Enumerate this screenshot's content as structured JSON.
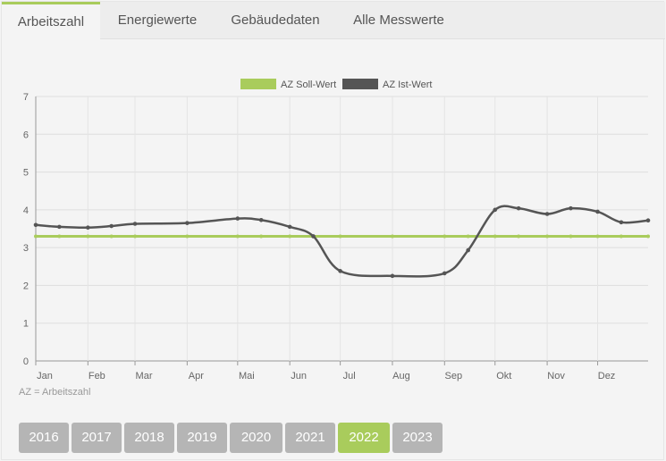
{
  "tabs": [
    {
      "label": "Arbeitszahl",
      "active": true
    },
    {
      "label": "Energiewerte",
      "active": false
    },
    {
      "label": "Gebäudedaten",
      "active": false
    },
    {
      "label": "Alle Messwerte",
      "active": false
    }
  ],
  "chart_data": {
    "type": "line",
    "x_labels": [
      "Jan",
      "Feb",
      "Mar",
      "Apr",
      "Mai",
      "Jun",
      "Jul",
      "Aug",
      "Sep",
      "Okt",
      "Nov",
      "Dez"
    ],
    "ylim": [
      0,
      7
    ],
    "yticks": [
      0,
      1,
      2,
      3,
      4,
      5,
      6,
      7
    ],
    "grid": true,
    "legend_position": "top-center",
    "series": [
      {
        "name": "AZ Soll-Wert",
        "color": "#a9cc5c",
        "points": [
          [
            "2022-01-01",
            3.3
          ],
          [
            "2022-01-15",
            3.3
          ],
          [
            "2022-02-01",
            3.3
          ],
          [
            "2022-02-15",
            3.3
          ],
          [
            "2022-03-01",
            3.3
          ],
          [
            "2022-04-01",
            3.3
          ],
          [
            "2022-05-01",
            3.3
          ],
          [
            "2022-05-15",
            3.3
          ],
          [
            "2022-06-01",
            3.3
          ],
          [
            "2022-06-15",
            3.3
          ],
          [
            "2022-07-01",
            3.3
          ],
          [
            "2022-08-01",
            3.3
          ],
          [
            "2022-09-01",
            3.3
          ],
          [
            "2022-09-15",
            3.3
          ],
          [
            "2022-10-01",
            3.3
          ],
          [
            "2022-10-15",
            3.3
          ],
          [
            "2022-11-01",
            3.3
          ],
          [
            "2022-11-15",
            3.3
          ],
          [
            "2022-12-01",
            3.3
          ],
          [
            "2022-12-15",
            3.3
          ],
          [
            "2022-12-31",
            3.3
          ]
        ]
      },
      {
        "name": "AZ Ist-Wert",
        "color": "#555555",
        "points": [
          [
            "2022-01-01",
            3.6
          ],
          [
            "2022-01-15",
            3.55
          ],
          [
            "2022-02-01",
            3.53
          ],
          [
            "2022-02-15",
            3.57
          ],
          [
            "2022-03-01",
            3.63
          ],
          [
            "2022-04-01",
            3.65
          ],
          [
            "2022-05-01",
            3.77
          ],
          [
            "2022-05-15",
            3.73
          ],
          [
            "2022-06-01",
            3.55
          ],
          [
            "2022-06-15",
            3.3
          ],
          [
            "2022-07-01",
            2.38
          ],
          [
            "2022-08-01",
            2.25
          ],
          [
            "2022-09-01",
            2.32
          ],
          [
            "2022-09-15",
            2.93
          ],
          [
            "2022-10-01",
            4.0
          ],
          [
            "2022-10-15",
            4.04
          ],
          [
            "2022-11-01",
            3.89
          ],
          [
            "2022-11-15",
            4.04
          ],
          [
            "2022-12-01",
            3.95
          ],
          [
            "2022-12-15",
            3.67
          ],
          [
            "2022-12-31",
            3.72
          ]
        ]
      }
    ]
  },
  "note": "AZ = Arbeitszahl",
  "years": [
    {
      "label": "2016",
      "active": false
    },
    {
      "label": "2017",
      "active": false
    },
    {
      "label": "2018",
      "active": false
    },
    {
      "label": "2019",
      "active": false
    },
    {
      "label": "2020",
      "active": false
    },
    {
      "label": "2021",
      "active": false
    },
    {
      "label": "2022",
      "active": true
    },
    {
      "label": "2023",
      "active": false
    }
  ]
}
